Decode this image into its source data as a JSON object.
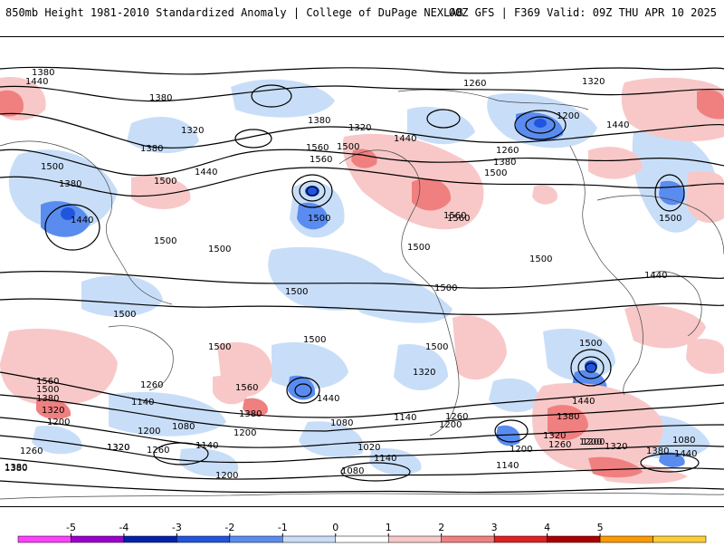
{
  "header": {
    "title": "850mb Height 1981-2010 Standardized Anomaly | College of DuPage NEXLAB",
    "run_info": "00Z GFS | F369 Valid: 09Z THU APR 10 2025"
  },
  "colorbar": {
    "ticks": [
      "-5",
      "-4",
      "-3",
      "-2",
      "-1",
      "0",
      "1",
      "2",
      "3",
      "4",
      "5"
    ],
    "colors": [
      "#ff40ff",
      "#9900cc",
      "#0022aa",
      "#2255dd",
      "#5a8cf0",
      "#c8def8",
      "#ffffff",
      "#f8c8c8",
      "#f08080",
      "#dd2222",
      "#aa0000",
      "#ff9900",
      "#ffcc33"
    ]
  },
  "contour_labels": [
    "1380",
    "1440",
    "1380",
    "1320",
    "1380",
    "1320",
    "1380",
    "1500",
    "1440",
    "1380",
    "1440",
    "1500",
    "1440",
    "1560",
    "1560",
    "1500",
    "1440",
    "1500",
    "1500",
    "1560",
    "1500",
    "1260",
    "1320",
    "1200",
    "1260",
    "1380",
    "1500",
    "1440",
    "1500",
    "1500",
    "1500",
    "1500",
    "1500",
    "1500",
    "1500",
    "1500",
    "1500",
    "1500",
    "1560",
    "1560",
    "1500",
    "1380",
    "1320",
    "1200",
    "1260",
    "1140",
    "1080",
    "1560",
    "1440",
    "1380",
    "1200",
    "1320",
    "1440",
    "1380",
    "1320",
    "1260",
    "1200",
    "1080",
    "1140",
    "1200",
    "1020",
    "1080",
    "1140",
    "1200",
    "1260",
    "1320",
    "1380",
    "1440",
    "1080",
    "1320",
    "1200",
    "1140",
    "1260",
    "1200",
    "1140",
    "1260",
    "1200",
    "1320",
    "1380",
    "1380"
  ],
  "colors": {
    "neg1": "#c8def8",
    "neg2": "#5a8cf0",
    "neg3": "#2255dd",
    "pos1": "#f8c8c8",
    "pos2": "#f08080",
    "pos3": "#dd2222"
  }
}
